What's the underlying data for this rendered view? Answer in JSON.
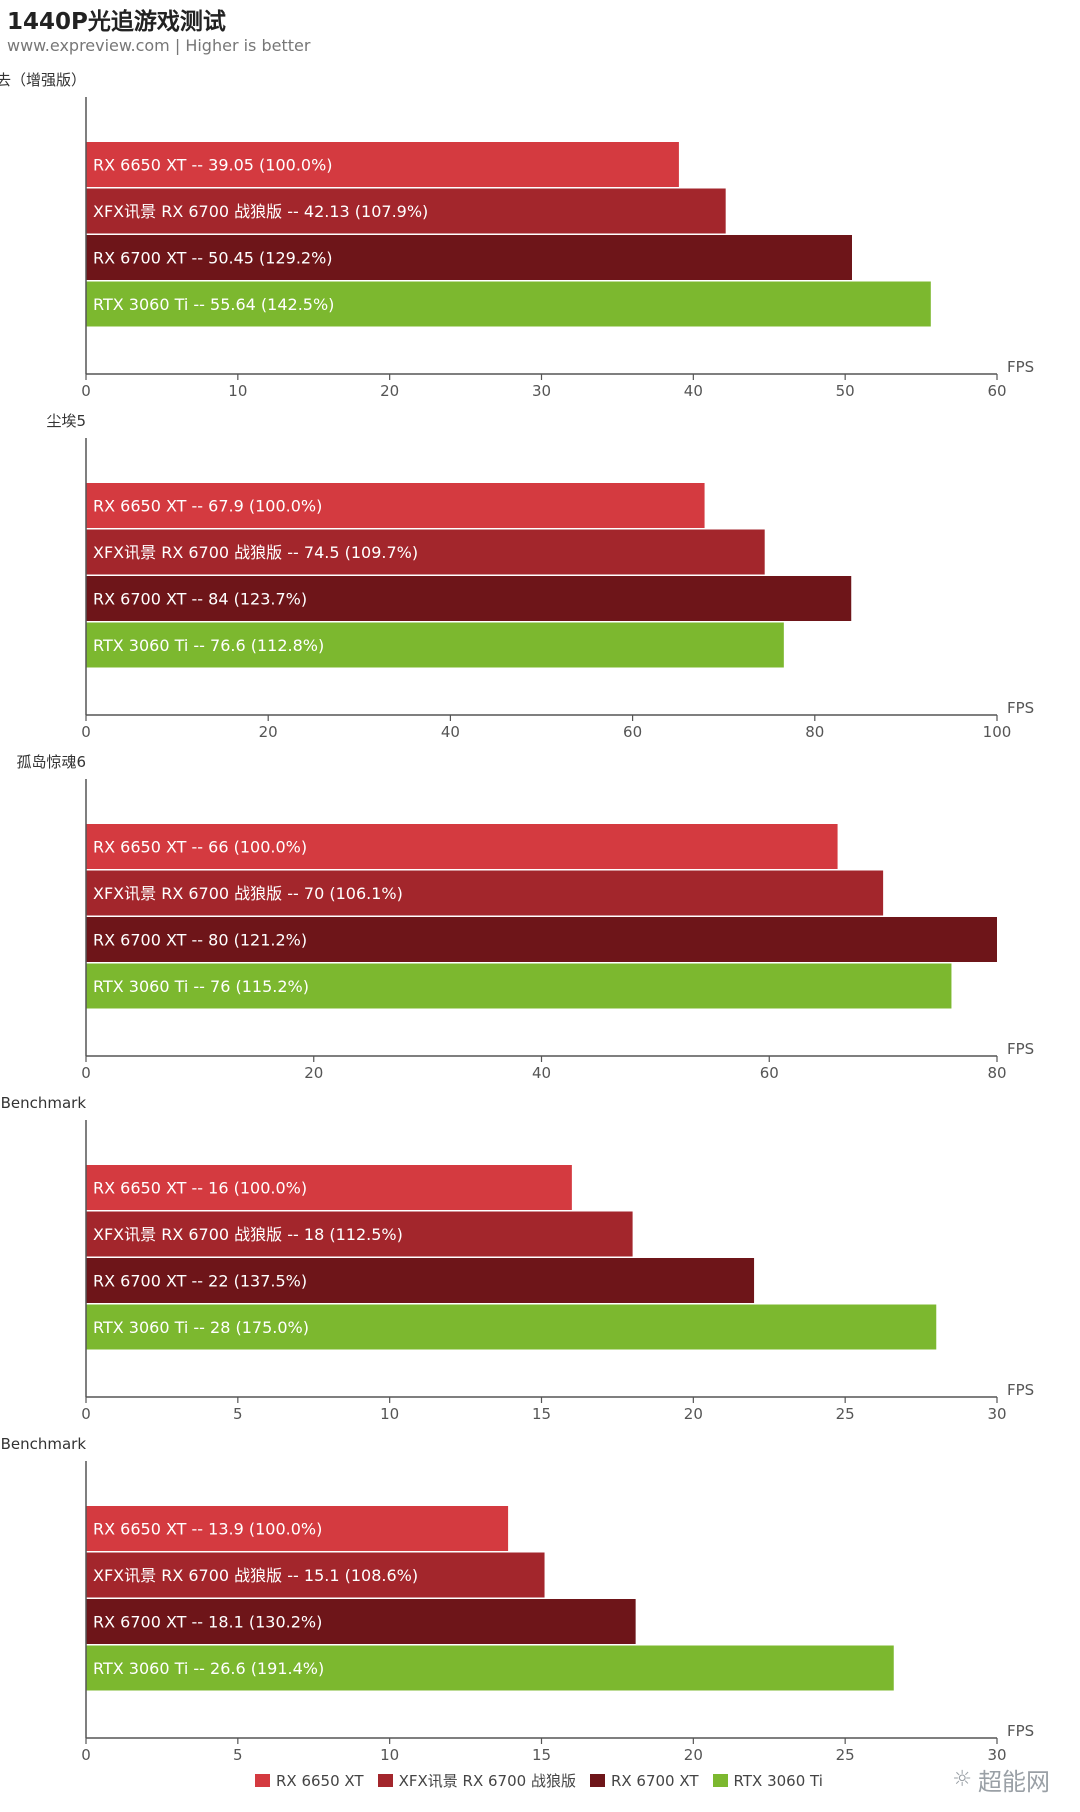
{
  "header": {
    "title": "1440P光追游戏测试",
    "subtitle": "www.expreview.com | Higher is better"
  },
  "colors": {
    "rx6650xt": "#d43a40",
    "xfx6700": "#a3262c",
    "rx6700xt": "#6e1519",
    "rtx3060ti": "#7cb82f",
    "axis": "#555555"
  },
  "legend": [
    {
      "label": "RX 6650 XT",
      "color": "#d43a40"
    },
    {
      "label": "XFX讯景 RX 6700 战狼版",
      "color": "#a3262c"
    },
    {
      "label": "RX 6700 XT",
      "color": "#6e1519"
    },
    {
      "label": "RTX 3060 Ti",
      "color": "#7cb82f"
    }
  ],
  "watermark": "超能网",
  "chart_data": [
    {
      "type": "bar",
      "title": "地铁：离去（增强版）",
      "xlabel": "FPS",
      "xlim": [
        0,
        60
      ],
      "ticks": [
        0,
        10,
        20,
        30,
        40,
        50,
        60
      ],
      "bars": [
        {
          "name": "RX 6650 XT",
          "value": 39.05,
          "label": "RX 6650 XT  --  39.05  (100.0%)",
          "color": "#d43a40"
        },
        {
          "name": "XFX讯景 RX 6700 战狼版",
          "value": 42.13,
          "label": "XFX讯景 RX 6700 战狼版  --  42.13  (107.9%)",
          "color": "#a3262c"
        },
        {
          "name": "RX 6700 XT",
          "value": 50.45,
          "label": "RX 6700 XT  --  50.45  (129.2%)",
          "color": "#6e1519"
        },
        {
          "name": "RTX 3060 Ti",
          "value": 55.64,
          "label": "RTX 3060 Ti  --  55.64  (142.5%)",
          "color": "#7cb82f"
        }
      ]
    },
    {
      "type": "bar",
      "title": "尘埃5",
      "xlabel": "FPS",
      "xlim": [
        0,
        100
      ],
      "ticks": [
        0,
        20,
        40,
        60,
        80,
        100
      ],
      "bars": [
        {
          "name": "RX 6650 XT",
          "value": 67.9,
          "label": "RX 6650 XT  --  67.9  (100.0%)",
          "color": "#d43a40"
        },
        {
          "name": "XFX讯景 RX 6700 战狼版",
          "value": 74.5,
          "label": "XFX讯景 RX 6700 战狼版  --  74.5  (109.7%)",
          "color": "#a3262c"
        },
        {
          "name": "RX 6700 XT",
          "value": 84,
          "label": "RX 6700 XT  --   84 (123.7%)",
          "color": "#6e1519"
        },
        {
          "name": "RTX 3060 Ti",
          "value": 76.6,
          "label": "RTX 3060 Ti  --   76.6 (112.8%)",
          "color": "#7cb82f"
        }
      ]
    },
    {
      "type": "bar",
      "title": "孤岛惊魂6",
      "xlabel": "FPS",
      "xlim": [
        0,
        80
      ],
      "ticks": [
        0,
        20,
        40,
        60,
        80
      ],
      "bars": [
        {
          "name": "RX 6650 XT",
          "value": 66,
          "label": "RX 6650 XT  --   66 (100.0%)",
          "color": "#d43a40"
        },
        {
          "name": "XFX讯景 RX 6700 战狼版",
          "value": 70,
          "label": "XFX讯景 RX 6700 战狼版  --  70  (106.1%)",
          "color": "#a3262c"
        },
        {
          "name": "RX 6700 XT",
          "value": 80,
          "label": "RX 6700 XT  --   80 (121.2%)",
          "color": "#6e1519"
        },
        {
          "name": "RTX 3060 Ti",
          "value": 76,
          "label": "RTX 3060 Ti  --   76 (115.2%)",
          "color": "#7cb82f"
        }
      ]
    },
    {
      "type": "bar",
      "title": "光明记忆Benchmark",
      "xlabel": "FPS",
      "xlim": [
        0,
        30
      ],
      "ticks": [
        0,
        5,
        10,
        15,
        20,
        25,
        30
      ],
      "bars": [
        {
          "name": "RX 6650 XT",
          "value": 16,
          "label": "RX 6650 XT  --  16  (100.0%)",
          "color": "#d43a40"
        },
        {
          "name": "XFX讯景 RX 6700 战狼版",
          "value": 18,
          "label": "XFX讯景 RX 6700 战狼版  --  18  (112.5%)",
          "color": "#a3262c"
        },
        {
          "name": "RX 6700 XT",
          "value": 22,
          "label": "RX 6700 XT  --   22 (137.5%)",
          "color": "#6e1519"
        },
        {
          "name": "RTX 3060 Ti",
          "value": 28,
          "label": "RTX 3060 Ti  --  28  (175.0%)",
          "color": "#7cb82f"
        }
      ]
    },
    {
      "type": "bar",
      "title": "边境Benchmark",
      "xlabel": "FPS",
      "xlim": [
        0,
        30
      ],
      "ticks": [
        0,
        5,
        10,
        15,
        20,
        25,
        30
      ],
      "bars": [
        {
          "name": "RX 6650 XT",
          "value": 13.9,
          "label": "RX 6650 XT  --  13.9  (100.0%)",
          "color": "#d43a40"
        },
        {
          "name": "XFX讯景 RX 6700 战狼版",
          "value": 15.1,
          "label": "XFX讯景 RX 6700 战狼版  --  15.1  (108.6%)",
          "color": "#a3262c"
        },
        {
          "name": "RX 6700 XT",
          "value": 18.1,
          "label": "RX 6700 XT  --   18.1 (130.2%)",
          "color": "#6e1519"
        },
        {
          "name": "RTX 3060 Ti",
          "value": 26.6,
          "label": "RTX 3060 Ti  --   26.6 (191.4%)",
          "color": "#7cb82f"
        }
      ]
    }
  ]
}
